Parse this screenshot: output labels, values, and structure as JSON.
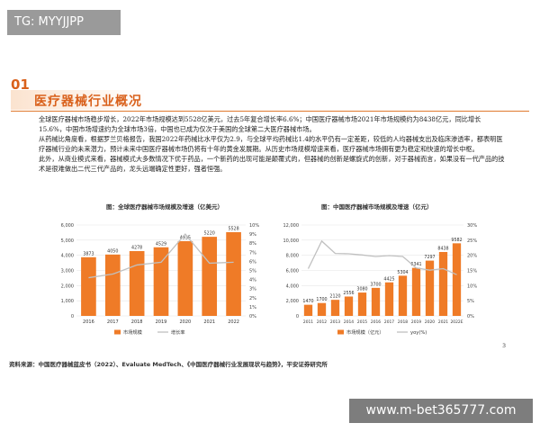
{
  "watermark_top": "TG: MYYJJPP",
  "watermark_bottom": "www.m-bet365777.com",
  "section": {
    "number": "01",
    "title": "医疗器械行业概况"
  },
  "paragraphs": [
    "全球医疗器械市场稳步增长，2022年市场规模达到5528亿美元，过去5年复合增长率6.6%；中国医疗器械市场2021年市场规模约为8438亿元，同比增长15.6%，中国市场增速约为全球市场3倍，中国也已成为仅次于美国的全球第二大医疗器械市场。",
    "从药械比角度看，根据罗兰贝格报告，我国2022年药械比水平仅为2.9，与全球平均药械比1.4的水平仍有一定差距，较低的人均器械支出及临床渗透率，都表明医疗器械行业的未来潜力，预计未来中国医疗器械市场仍将有十年的黄金发展期。从历史市场规模增速来看，医疗器械市场拥有更为稳定和快速的增长中枢。",
    "此外，从商业模式来看，器械模式大多数情况下优于药品，一个新药的出现可能是颠覆式的，但器械的创新是螺旋式的创新，对于器械而言，如果没有一代产品的技术是很难做出二代三代产品的，龙头远端确定性更好，强者恒强。"
  ],
  "chart_left_title": "图：全球医疗器械市场规模及增速（亿美元）",
  "chart_right_title": "图：中国医疗器械市场规模及增速（亿元）",
  "chart_data": [
    {
      "type": "bar",
      "title": "图：全球医疗器械市场规模及增速（亿美元）",
      "categories": [
        "2016",
        "2017",
        "2018",
        "2019",
        "2020",
        "2021",
        "2022"
      ],
      "y_ticks": [
        "0",
        "1,000",
        "2,000",
        "3,000",
        "4,000",
        "5,000",
        "6,000"
      ],
      "y2_ticks": [
        "0%",
        "1%",
        "2%",
        "3%",
        "4%",
        "5%",
        "6%",
        "7%",
        "8%",
        "9%",
        "10%"
      ],
      "ylim": [
        0,
        6000
      ],
      "y2lim": [
        0,
        10
      ],
      "series": [
        {
          "name": "市场规模",
          "kind": "bar",
          "values": [
            3873,
            4050,
            4278,
            4529,
            4935,
            5220,
            5528
          ],
          "labels": [
            "3873",
            "4050",
            "4278",
            "4529",
            "4935",
            "5220",
            "5528"
          ]
        },
        {
          "name": "增长率",
          "kind": "line",
          "values": [
            4.2,
            4.6,
            5.6,
            5.9,
            9.0,
            5.8,
            5.9
          ]
        }
      ],
      "colors": {
        "bar": "#ef7b27",
        "line": "#c0c0c0"
      },
      "legend": "bottom"
    },
    {
      "type": "bar",
      "title": "图：中国医疗器械市场规模及增速（亿元）",
      "categories": [
        "2011",
        "2012",
        "2013",
        "2014",
        "2015",
        "2016",
        "2017",
        "2018",
        "2019",
        "2020",
        "2021",
        "2022E"
      ],
      "y_ticks": [
        "0",
        "2,000",
        "4,000",
        "6,000",
        "8,000",
        "10,000",
        "12,000"
      ],
      "y2_ticks": [
        "0%",
        "5%",
        "10%",
        "15%",
        "20%",
        "25%",
        "30%"
      ],
      "ylim": [
        0,
        12000
      ],
      "y2lim": [
        0,
        30
      ],
      "series": [
        {
          "name": "市场规模（亿元）",
          "kind": "bar",
          "values": [
            1470,
            1700,
            2120,
            2556,
            3080,
            3700,
            4425,
            5304,
            6341,
            7297,
            8438,
            9582
          ],
          "labels": [
            "1470",
            "1700",
            "2120",
            "2556",
            "3080",
            "3700",
            "4425",
            "5304",
            "6341",
            "7297",
            "8438",
            "9582"
          ]
        },
        {
          "name": "yoy(%)",
          "kind": "line",
          "values": [
            15.6,
            24.7,
            20.6,
            20.5,
            20.1,
            19.6,
            19.9,
            19.6,
            15.8,
            15.1,
            15.6,
            13.6
          ]
        }
      ],
      "colors": {
        "bar": "#ef7b27",
        "line": "#c0c0c0"
      },
      "legend": "bottom"
    }
  ],
  "page_number": "3",
  "source": "资料来源：中国医疗器械蓝皮书（2022）、Evaluate MedTech、《中国医疗器械行业发展现状与趋势》，平安证券研究所"
}
